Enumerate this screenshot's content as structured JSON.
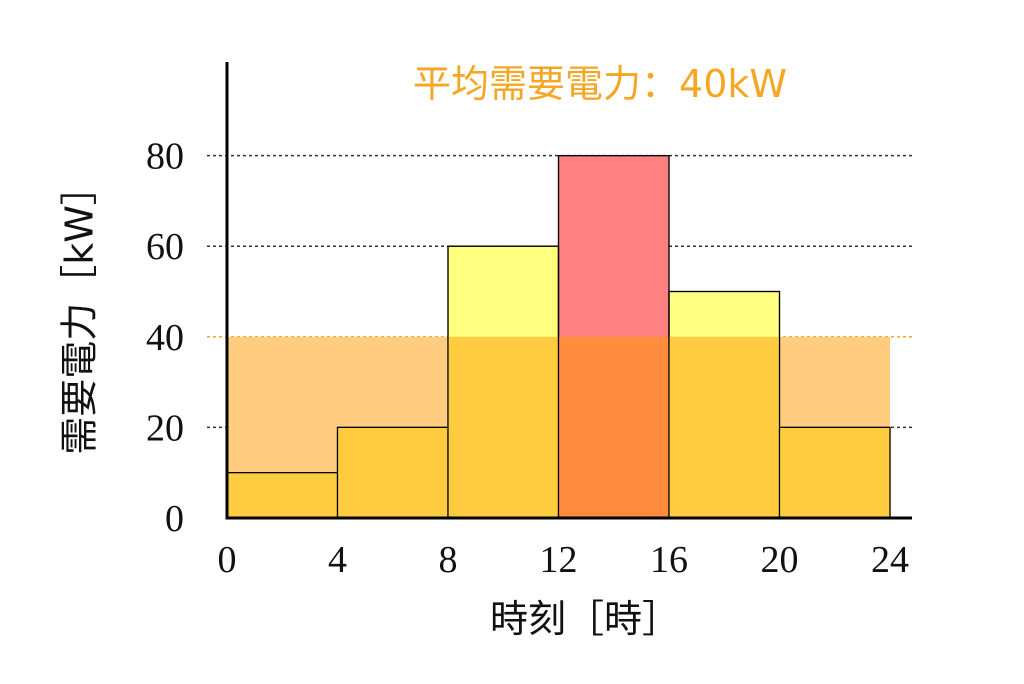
{
  "chart_data": {
    "type": "bar",
    "x_edges": [
      0,
      4,
      8,
      12,
      16,
      20,
      24
    ],
    "categories": [
      "0-4",
      "4-8",
      "8-12",
      "12-16",
      "16-20",
      "20-24"
    ],
    "values": [
      10,
      20,
      60,
      80,
      50,
      20
    ],
    "xticks": [
      "0",
      "4",
      "8",
      "12",
      "16",
      "20",
      "24"
    ],
    "yticks": [
      "0",
      "20",
      "40",
      "60",
      "80"
    ],
    "xlabel": "時刻［時］",
    "ylabel": "需要電力［kW］",
    "xlim": [
      0,
      24
    ],
    "ylim": [
      0,
      100
    ],
    "grid": {
      "y": true,
      "style": "dotted",
      "values": [
        20,
        60,
        80
      ]
    },
    "average": {
      "value": 40,
      "label": "平均需要電力：40kW",
      "color": "#f5a623"
    },
    "colors": {
      "bar_above_average": "#ffff80",
      "bar_peak": "#ff8080",
      "bar_overlap": "#ffcc40",
      "bar_peak_overlap": "#ff8c3c",
      "average_band": "#ffcc80",
      "axis": "#000000"
    }
  }
}
